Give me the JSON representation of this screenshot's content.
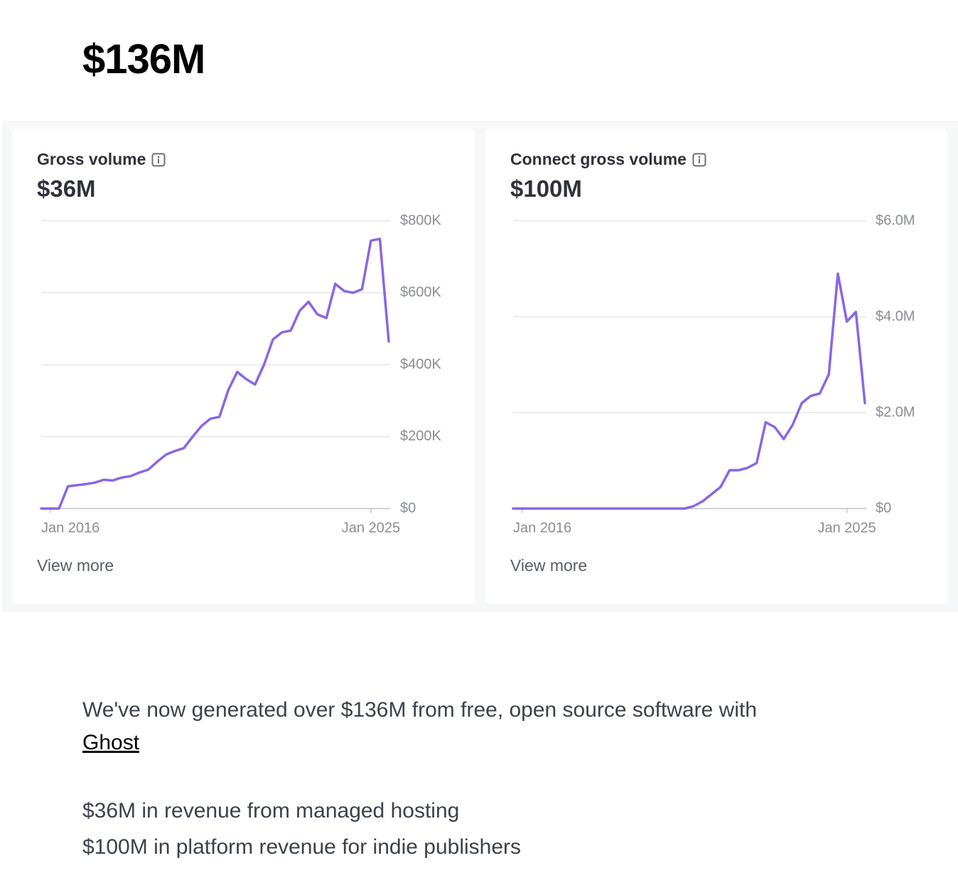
{
  "header": {
    "total": "$136M"
  },
  "chart_data": [
    {
      "type": "line",
      "title": "Gross volume",
      "subtitle": "$36M",
      "footer": "View more",
      "color": "#8a66e4",
      "x": [
        "2015-10",
        "2016-01",
        "2016-04",
        "2016-07",
        "2016-10",
        "2017-01",
        "2017-04",
        "2017-07",
        "2017-10",
        "2018-01",
        "2018-04",
        "2018-07",
        "2018-10",
        "2019-01",
        "2019-04",
        "2019-07",
        "2019-10",
        "2020-01",
        "2020-04",
        "2020-07",
        "2020-10",
        "2021-01",
        "2021-04",
        "2021-07",
        "2021-10",
        "2022-01",
        "2022-04",
        "2022-07",
        "2022-10",
        "2023-01",
        "2023-04",
        "2023-07",
        "2023-10",
        "2024-01",
        "2024-04",
        "2024-07",
        "2024-10",
        "2025-01",
        "2025-04",
        "2025-07"
      ],
      "values": [
        0,
        0,
        0,
        62000,
        65000,
        68000,
        72000,
        80000,
        78000,
        86000,
        90000,
        100000,
        108000,
        130000,
        150000,
        160000,
        168000,
        200000,
        230000,
        250000,
        255000,
        330000,
        380000,
        360000,
        345000,
        400000,
        470000,
        490000,
        495000,
        550000,
        575000,
        540000,
        530000,
        625000,
        605000,
        600000,
        610000,
        745000,
        750000,
        465000
      ],
      "xlim": [
        "2015-10",
        "2025-07"
      ],
      "xticks": [
        {
          "value": "2016-01",
          "label": "Jan 2016"
        },
        {
          "value": "2025-01",
          "label": "Jan 2025"
        }
      ],
      "ylim": [
        0,
        800000
      ],
      "yticks": [
        {
          "value": 0,
          "label": "$0"
        },
        {
          "value": 200000,
          "label": "$200K"
        },
        {
          "value": 400000,
          "label": "$400K"
        },
        {
          "value": 600000,
          "label": "$600K"
        },
        {
          "value": 800000,
          "label": "$800K"
        }
      ],
      "grid": true
    },
    {
      "type": "line",
      "title": "Connect gross volume",
      "subtitle": "$100M",
      "footer": "View more",
      "color": "#8a66e4",
      "x": [
        "2015-10",
        "2016-01",
        "2016-04",
        "2016-07",
        "2016-10",
        "2017-01",
        "2017-04",
        "2017-07",
        "2017-10",
        "2018-01",
        "2018-04",
        "2018-07",
        "2018-10",
        "2019-01",
        "2019-04",
        "2019-07",
        "2019-10",
        "2020-01",
        "2020-04",
        "2020-07",
        "2020-10",
        "2021-01",
        "2021-04",
        "2021-07",
        "2021-10",
        "2022-01",
        "2022-04",
        "2022-07",
        "2022-10",
        "2023-01",
        "2023-04",
        "2023-07",
        "2023-10",
        "2024-01",
        "2024-04",
        "2024-07",
        "2024-10",
        "2025-01",
        "2025-04",
        "2025-07"
      ],
      "values": [
        0,
        0,
        0,
        0,
        0,
        0,
        0,
        0,
        0,
        0,
        0,
        0,
        0,
        0,
        0,
        0,
        0,
        0,
        0,
        0,
        50000,
        150000,
        300000,
        450000,
        800000,
        800000,
        850000,
        950000,
        1800000,
        1700000,
        1450000,
        1750000,
        2200000,
        2350000,
        2400000,
        2800000,
        4900000,
        3900000,
        4100000,
        2200000
      ],
      "xlim": [
        "2015-10",
        "2025-07"
      ],
      "xticks": [
        {
          "value": "2016-01",
          "label": "Jan 2016"
        },
        {
          "value": "2025-01",
          "label": "Jan 2025"
        }
      ],
      "ylim": [
        0,
        6000000
      ],
      "yticks": [
        {
          "value": 0,
          "label": "$0"
        },
        {
          "value": 2000000,
          "label": "$2.0M"
        },
        {
          "value": 4000000,
          "label": "$4.0M"
        },
        {
          "value": 6000000,
          "label": "$6.0M"
        }
      ],
      "grid": true
    }
  ],
  "body": {
    "intro": "We've now generated over $136M from free, open source software with",
    "link": "Ghost",
    "lines": [
      "$36M in revenue from managed hosting",
      "$100M in platform revenue for indie publishers"
    ]
  }
}
